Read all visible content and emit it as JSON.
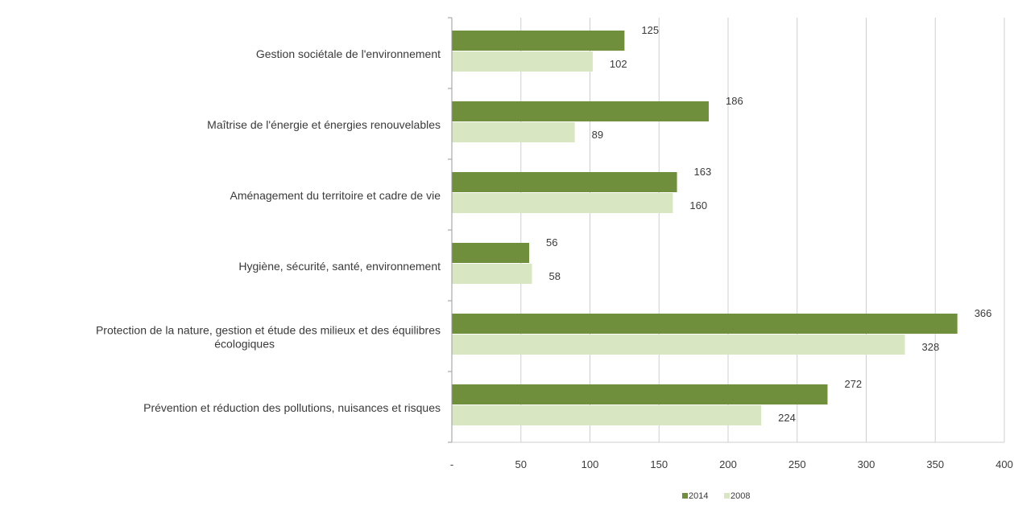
{
  "chart_data": {
    "type": "bar",
    "orientation": "horizontal",
    "categories": [
      [
        "Gestion sociétale de l'environnement"
      ],
      [
        "Maîtrise de l'énergie et énergies renouvelables"
      ],
      [
        "Aménagement du territoire et cadre de vie"
      ],
      [
        "Hygiène, sécurité, santé, environnement"
      ],
      [
        "Protection de la nature, gestion et étude des milieux et des équilibres",
        "écologiques"
      ],
      [
        "Prévention et réduction des pollutions, nuisances et risques"
      ]
    ],
    "series": [
      {
        "name": "2014",
        "color": "#6f8f3c",
        "values": [
          125,
          186,
          163,
          56,
          366,
          272
        ]
      },
      {
        "name": "2008",
        "color": "#d8e6c2",
        "values": [
          102,
          89,
          160,
          58,
          328,
          224
        ]
      }
    ],
    "xlim": [
      0,
      400
    ],
    "xticks": [
      0,
      50,
      100,
      150,
      200,
      250,
      300,
      350,
      400
    ],
    "xtick_labels": [
      "-",
      "50",
      "100",
      "150",
      "200",
      "250",
      "300",
      "350",
      "400"
    ],
    "grid": "vertical",
    "legend": "bottom-center",
    "title": "",
    "xlabel": "",
    "ylabel": ""
  }
}
